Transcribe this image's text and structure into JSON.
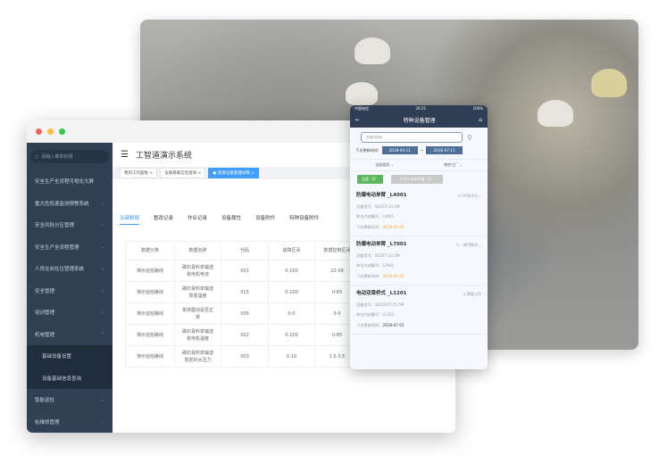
{
  "window": {
    "title": "工智道演示系统",
    "search_placeholder": "请输入菜单标题"
  },
  "sidebar": {
    "items": [
      {
        "label": "安全生产全流程可视化大屏",
        "chev": ""
      },
      {
        "label": "重大危险源监测预警系统",
        "chev": "⌄"
      },
      {
        "label": "安全风险分区管理",
        "chev": "⌄"
      },
      {
        "label": "安全生产全流程管理",
        "chev": "⌄"
      },
      {
        "label": "人员在岗在位管理系统",
        "chev": "⌄"
      },
      {
        "label": "安全管理",
        "chev": "⌄"
      },
      {
        "label": "培训管理",
        "chev": "⌄"
      },
      {
        "label": "机电管理",
        "chev": "⌃"
      },
      {
        "label": "基础设备设置",
        "chev": ""
      },
      {
        "label": "设备基础信息查询",
        "chev": ""
      },
      {
        "label": "智能巡检",
        "chev": "⌄"
      },
      {
        "label": "检维修管理",
        "chev": "⌄"
      }
    ]
  },
  "tags": [
    "我的工作面板",
    "设备基础信息查询",
    "具体设备管理详情"
  ],
  "tabs": [
    "关键数据",
    "整改记录",
    "作业记录",
    "设备属性",
    "设备附件",
    "特种设备附件"
  ],
  "table": {
    "headers": [
      "数据分类",
      "数据名称",
      "代码",
      "故障区间",
      "数据控制区间"
    ],
    "rows": [
      [
        "演示巡检路线",
        "磷石膏料浆输送泵电机电流",
        "001",
        "0-100",
        "22-58"
      ],
      [
        "演示巡检路线",
        "磷石膏料浆输送泵泵温度",
        "015",
        "0-100",
        "0-65"
      ],
      [
        "演示巡检路线",
        "泵体震动是否正常",
        "006",
        "0-0",
        "0-0"
      ],
      [
        "演示巡检路线",
        "磷石膏料浆输送泵电机温度",
        "002",
        "0-100",
        "0-85"
      ],
      [
        "演示巡检路线",
        "磷石膏料浆输送泵密封水压力",
        "003",
        "0-10",
        "1.5-3.5"
      ]
    ]
  },
  "phone": {
    "carrier": "中国电信",
    "time": "20:21",
    "battery": "100%",
    "title": "特种设备管理",
    "search_placeholder": "关键词搜索",
    "date_label": "下次更新时间:",
    "date_from": "2018-04-11",
    "date_sep": "~",
    "date_to": "2018-07-11",
    "filter_type": "全部类别",
    "filter_plant": "南京工厂",
    "btn_all": "全部（3）",
    "btn_special": "只显示有检设备（2）",
    "field_model": "设备型号：",
    "field_code": "单位内部编号：",
    "field_next": "下次更新时间：",
    "cards": [
      {
        "name": "防爆电动单臂 _L4001",
        "location": "CO泵冷分...",
        "model": "BLDST-14.5M",
        "code": "L4001",
        "next": "2018-05-01",
        "warn": true
      },
      {
        "name": "防爆电动单臂 _L7001",
        "location": "一期甲醇合...",
        "model": "BLDST-22.5M",
        "code": "L7001",
        "next": "2018-05-01",
        "warn": true
      },
      {
        "name": "电动双梁桥式 _L1201",
        "location": "磨煤工序",
        "model": "QD32/5T-25.5M",
        "code": "L1201",
        "next": "2018-07-01",
        "warn": false
      }
    ]
  },
  "colors": {
    "sidebar": "#304156",
    "accent": "#409eff",
    "phone_nav": "#2f3e55",
    "warn": "#f5a623",
    "green": "#5cb85c"
  }
}
